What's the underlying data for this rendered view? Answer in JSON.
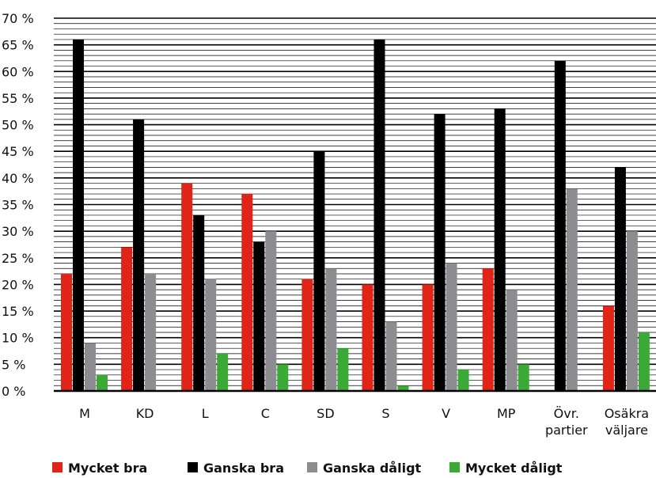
{
  "chart_data": {
    "type": "bar",
    "categories": [
      [
        "M"
      ],
      [
        "KD"
      ],
      [
        "L"
      ],
      [
        "C"
      ],
      [
        "SD"
      ],
      [
        "S"
      ],
      [
        "V"
      ],
      [
        "MP"
      ],
      [
        "Övr.",
        "partier"
      ],
      [
        "Osäkra",
        "väljare"
      ]
    ],
    "series": [
      {
        "name": "Mycket bra",
        "color": "#e02418",
        "values": [
          22,
          27,
          39,
          37,
          21,
          20,
          20,
          23,
          null,
          16
        ]
      },
      {
        "name": "Ganska bra",
        "color": "#000000",
        "values": [
          66,
          51,
          33,
          28,
          45,
          66,
          52,
          53,
          62,
          42
        ]
      },
      {
        "name": "Ganska dåligt",
        "color": "#8d8d91",
        "values": [
          9,
          22,
          21,
          30,
          23,
          13,
          24,
          19,
          38,
          30
        ]
      },
      {
        "name": "Mycket dåligt",
        "color": "#3aa935",
        "values": [
          3,
          null,
          7,
          5,
          8,
          1,
          4,
          5,
          null,
          11
        ]
      }
    ],
    "y_ticks": [
      "0 %",
      "5 %",
      "10 %",
      "15 %",
      "20 %",
      "25 %",
      "30 %",
      "35 %",
      "40 %",
      "45 %",
      "50 %",
      "55 %",
      "60 %",
      "65 %",
      "70 %"
    ],
    "ylim": [
      0,
      70
    ],
    "grid": true,
    "legend_position": "bottom"
  }
}
